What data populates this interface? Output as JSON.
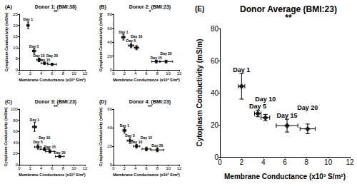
{
  "chart_data": [
    {
      "type": "scatter",
      "panel_label": "(A)",
      "title": "Donor 1: (BMI:38)",
      "significance": "**",
      "xlabel": "Membrane Conductance (x10³ S/m²)",
      "ylabel": "Cytoplasm Conductivity (mS/m)",
      "point_labels": [
        "Day 1",
        "Day 5",
        "Day 10",
        "Day 15",
        "Day 20"
      ],
      "x": [
        1.6,
        2.7,
        3.6,
        4.6,
        6.0
      ],
      "values": [
        20,
        8.5,
        4.5,
        3,
        2.5
      ],
      "x_err": [
        0.2,
        0.3,
        0.4,
        0.6,
        0.8
      ],
      "y_err": [
        1.5,
        1,
        0.8,
        0.5,
        0.5
      ],
      "xlim": [
        0,
        12
      ],
      "xticks": [
        0,
        2,
        4,
        6,
        8,
        10,
        12
      ],
      "ylim": [
        0,
        25
      ],
      "yticks": [
        0,
        5,
        10,
        15,
        20,
        25
      ],
      "marker": "square",
      "color": "#000000",
      "grid": false
    },
    {
      "type": "scatter",
      "panel_label": "(B)",
      "title": "Donor 2: (BMI:23)",
      "significance": "*",
      "xlabel": "Membrane Conductance (x10³ S/m²)",
      "ylabel": "Cytoplasm Conductivity (mS/m)",
      "point_labels": [
        "Day 1",
        "Day 5",
        "Day 10",
        "Day 15",
        "Day 20"
      ],
      "x": [
        1.8,
        3.2,
        4.2,
        7.8,
        9.6
      ],
      "values": [
        47,
        35,
        32,
        12,
        12
      ],
      "x_err": [
        0.3,
        0.5,
        0.4,
        0.8,
        1.2
      ],
      "y_err": [
        4,
        3,
        3,
        2,
        2
      ],
      "xlim": [
        0,
        12
      ],
      "xticks": [
        0,
        2,
        4,
        6,
        8,
        10,
        12
      ],
      "ylim": [
        0,
        80
      ],
      "yticks": [
        0,
        20,
        40,
        60,
        80
      ],
      "marker": "square",
      "color": "#000000",
      "grid": false
    },
    {
      "type": "scatter",
      "panel_label": "(C)",
      "title": "Donor 3: (BMI:23)",
      "significance": "**",
      "xlabel": "Membrane Conductance (x10³ S/m²)",
      "ylabel": "Cytoplasm Conductivity (mS/m)",
      "point_labels": [
        "Day 1",
        "Day 5",
        "Day 10",
        "Day 15",
        "Day 20"
      ],
      "x": [
        2.8,
        3.4,
        4.6,
        5.6,
        7.4
      ],
      "values": [
        68,
        32,
        28,
        24,
        15
      ],
      "x_err": [
        0.4,
        0.6,
        0.8,
        0.8,
        0.8
      ],
      "y_err": [
        8,
        4,
        3,
        3,
        2
      ],
      "xlim": [
        0,
        12
      ],
      "xticks": [
        0,
        2,
        4,
        6,
        8,
        10,
        12
      ],
      "ylim": [
        0,
        100
      ],
      "yticks": [
        0,
        20,
        40,
        60,
        80,
        100
      ],
      "marker": "square",
      "color": "#000000",
      "grid": false
    },
    {
      "type": "scatter",
      "panel_label": "(D)",
      "title": "Donor 4: (BMI:23)",
      "significance": "**",
      "xlabel": "Membrane Conductance (x10³ S/m²)",
      "ylabel": "Cytoplasm Conductivity (mS/m)",
      "point_labels": [
        "Day 1",
        "Day 5",
        "Day 10",
        "Day 15",
        "Day 20"
      ],
      "x": [
        2.0,
        3.0,
        4.2,
        6.0,
        8.0
      ],
      "values": [
        37,
        26,
        20,
        17,
        16
      ],
      "x_err": [
        0.3,
        0.5,
        0.6,
        0.8,
        1.2
      ],
      "y_err": [
        3,
        3,
        2,
        2,
        2
      ],
      "xlim": [
        0,
        12
      ],
      "xticks": [
        0,
        2,
        4,
        6,
        8,
        10,
        12
      ],
      "ylim": [
        0,
        60
      ],
      "yticks": [
        0,
        20,
        40,
        60
      ],
      "marker": "square",
      "color": "#000000",
      "grid": false
    },
    {
      "type": "scatter",
      "panel_label": "(E)",
      "title": "Donor Average (BMI:23)",
      "significance": "**",
      "xlabel": "Membrane Conductance (x10³ S/m²)",
      "ylabel": "Cytoplasm Conductivity (mS/m)",
      "point_labels": [
        "Day 1",
        "Day 5",
        "Day 10",
        "Day 15",
        "Day 20"
      ],
      "x": [
        2.0,
        3.5,
        4.2,
        6.2,
        8.1
      ],
      "values": [
        44,
        27,
        24.5,
        19.5,
        17.5
      ],
      "x_err": [
        0.3,
        0.3,
        0.4,
        1.0,
        0.7
      ],
      "y_err": [
        8,
        2,
        2,
        4,
        3
      ],
      "xlim": [
        0,
        12
      ],
      "xticks": [
        0,
        2,
        4,
        6,
        8,
        10,
        12
      ],
      "ylim": [
        0,
        80
      ],
      "yticks": [
        0,
        20,
        40,
        60,
        80
      ],
      "marker": "diamond",
      "color": "#000000",
      "grid": false
    }
  ]
}
